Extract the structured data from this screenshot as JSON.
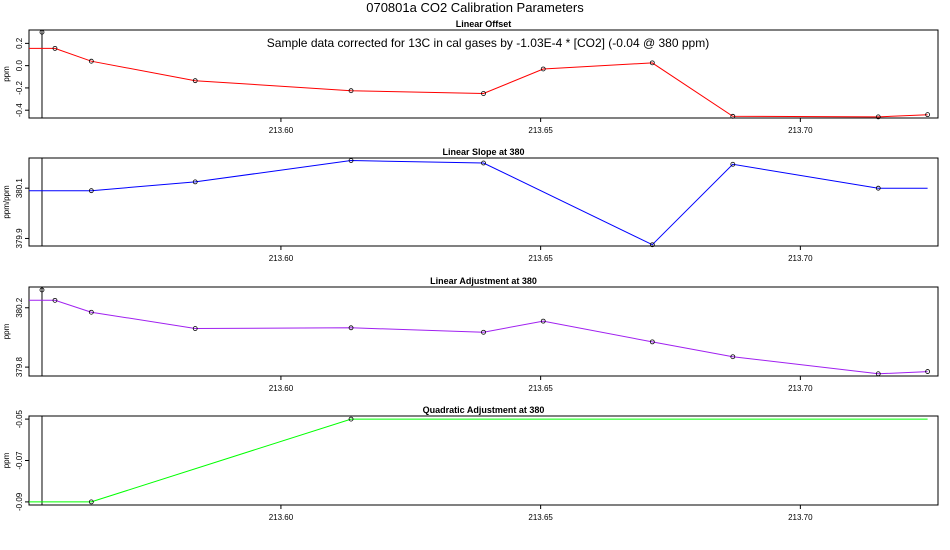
{
  "title": "070801a   CO2 Calibration Parameters",
  "chart_data": [
    {
      "type": "line",
      "title": "Linear Offset",
      "ylabel": "ppm",
      "annotation": "Sample data corrected for 13C in cal gases by -1.03E-4 * [CO2] (-0.04 @ 380 ppm)",
      "color": "#ff0000",
      "xlim": [
        213.5515,
        213.7265
      ],
      "ylim": [
        -0.47,
        0.32
      ],
      "xticks": [
        213.6,
        213.65,
        213.7
      ],
      "xtick_labels": [
        "213.60",
        "213.65",
        "213.70"
      ],
      "yticks": [
        -0.4,
        -0.2,
        0.0,
        0.2
      ],
      "ytick_labels": [
        "-0.4",
        "-0.2",
        "0.0",
        "0.2"
      ],
      "vline": 213.554,
      "line_x": [
        213.5515,
        213.5565,
        213.5635,
        213.5835,
        213.6135,
        213.639,
        213.6505,
        213.6715,
        213.687,
        213.715,
        213.7245
      ],
      "line_y": [
        0.155,
        0.155,
        0.04,
        -0.135,
        -0.225,
        -0.25,
        -0.03,
        0.025,
        -0.455,
        -0.46,
        -0.44
      ],
      "points_x": [
        213.554,
        213.5565,
        213.5635,
        213.5835,
        213.6135,
        213.639,
        213.6505,
        213.6715,
        213.687,
        213.715,
        213.7245
      ],
      "points_y": [
        0.3,
        0.155,
        0.04,
        -0.135,
        -0.225,
        -0.25,
        -0.03,
        0.025,
        -0.455,
        -0.46,
        -0.44
      ]
    },
    {
      "type": "line",
      "title": "Linear Slope at 380",
      "ylabel": "ppm/ppm",
      "color": "#0000ff",
      "xlim": [
        213.5515,
        213.7265
      ],
      "ylim": [
        379.87,
        380.22
      ],
      "xticks": [
        213.6,
        213.65,
        213.7
      ],
      "xtick_labels": [
        "213.60",
        "213.65",
        "213.70"
      ],
      "yticks": [
        379.9,
        380.1
      ],
      "ytick_labels": [
        "379.9",
        "380.1"
      ],
      "vline": 213.554,
      "line_x": [
        213.5515,
        213.5635,
        213.5835,
        213.6135,
        213.639,
        213.6715,
        213.687,
        213.715,
        213.7245
      ],
      "line_y": [
        380.09,
        380.09,
        380.125,
        380.21,
        380.2,
        379.875,
        380.195,
        380.1,
        380.1
      ],
      "points_x": [
        213.5635,
        213.5835,
        213.6135,
        213.639,
        213.6715,
        213.687,
        213.715
      ],
      "points_y": [
        380.09,
        380.125,
        380.21,
        380.2,
        379.875,
        380.195,
        380.1
      ]
    },
    {
      "type": "line",
      "title": "Linear Adjustment at 380",
      "ylabel": "ppm",
      "color": "#a020f0",
      "xlim": [
        213.5515,
        213.7265
      ],
      "ylim": [
        379.74,
        380.34
      ],
      "xticks": [
        213.6,
        213.65,
        213.7
      ],
      "xtick_labels": [
        "213.60",
        "213.65",
        "213.70"
      ],
      "yticks": [
        379.8,
        380.2
      ],
      "ytick_labels": [
        "379.8",
        "380.2"
      ],
      "vline": 213.554,
      "line_x": [
        213.5515,
        213.5565,
        213.5635,
        213.5835,
        213.6135,
        213.639,
        213.6505,
        213.6715,
        213.687,
        213.715,
        213.7245
      ],
      "line_y": [
        380.25,
        380.25,
        380.17,
        380.06,
        380.065,
        380.035,
        380.11,
        379.97,
        379.87,
        379.755,
        379.77
      ],
      "points_x": [
        213.554,
        213.5565,
        213.5635,
        213.5835,
        213.6135,
        213.639,
        213.6505,
        213.6715,
        213.687,
        213.715,
        213.7245
      ],
      "points_y": [
        380.32,
        380.25,
        380.17,
        380.06,
        380.065,
        380.035,
        380.11,
        379.97,
        379.87,
        379.755,
        379.77
      ]
    },
    {
      "type": "line",
      "title": "Quadratic Adjustment at 380",
      "ylabel": "ppm",
      "color": "#00ff00",
      "xlim": [
        213.5515,
        213.7265
      ],
      "ylim": [
        -0.0915,
        -0.0485
      ],
      "xticks": [
        213.6,
        213.65,
        213.7
      ],
      "xtick_labels": [
        "213.60",
        "213.65",
        "213.70"
      ],
      "yticks": [
        -0.09,
        -0.07,
        -0.05
      ],
      "ytick_labels": [
        "-0.09",
        "-0.07",
        "-0.05"
      ],
      "vline": 213.554,
      "line_x": [
        213.5515,
        213.5635,
        213.6135,
        213.7245
      ],
      "line_y": [
        -0.09,
        -0.09,
        -0.05,
        -0.05
      ],
      "points_x": [
        213.5635,
        213.6135
      ],
      "points_y": [
        -0.09,
        -0.05
      ]
    }
  ]
}
